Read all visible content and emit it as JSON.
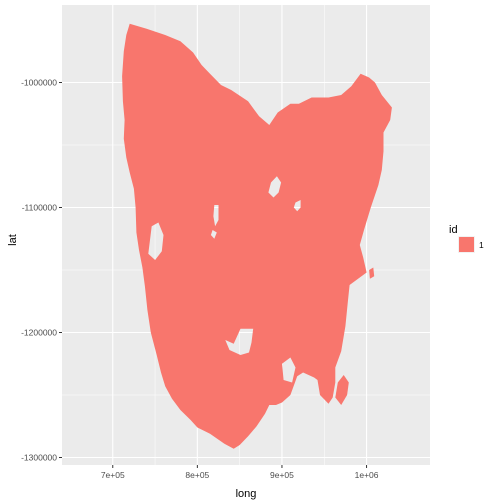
{
  "chart_data": {
    "type": "map",
    "xlabel": "long",
    "ylabel": "lat",
    "xlim": [
      640000,
      1075000
    ],
    "ylim": [
      -1306000,
      -938000
    ],
    "x_ticks": [
      {
        "value": 700000,
        "label": "7e+05"
      },
      {
        "value": 800000,
        "label": "8e+05"
      },
      {
        "value": 900000,
        "label": "9e+05"
      },
      {
        "value": 1000000,
        "label": "1e+06"
      }
    ],
    "y_ticks": [
      {
        "value": -1000000,
        "label": "-1000000"
      },
      {
        "value": -1100000,
        "label": "-1100000"
      },
      {
        "value": -1200000,
        "label": "-1200000"
      },
      {
        "value": -1300000,
        "label": "-1300000"
      }
    ],
    "grid": true,
    "legend": {
      "title": "id",
      "position": "right",
      "entries": [
        {
          "label": "1",
          "color": "#F8766D"
        }
      ]
    },
    "fill_color": "#F8766D",
    "panel_color": "#EBEBEB",
    "grid_color": "#FFFFFF",
    "polygon": [
      [
        720000,
        -953000
      ],
      [
        740000,
        -957000
      ],
      [
        762000,
        -962000
      ],
      [
        780000,
        -967000
      ],
      [
        795000,
        -976000
      ],
      [
        805000,
        -986000
      ],
      [
        815000,
        -993000
      ],
      [
        828000,
        -1002000
      ],
      [
        840000,
        -1006000
      ],
      [
        860000,
        -1015000
      ],
      [
        873000,
        -1027000
      ],
      [
        885000,
        -1034000
      ],
      [
        895000,
        -1024000
      ],
      [
        910000,
        -1017000
      ],
      [
        920000,
        -1017000
      ],
      [
        935000,
        -1012000
      ],
      [
        955000,
        -1012000
      ],
      [
        970000,
        -1010000
      ],
      [
        982000,
        -1003000
      ],
      [
        993000,
        -993000
      ],
      [
        1003000,
        -996000
      ],
      [
        1010000,
        -1000000
      ],
      [
        1018000,
        -1010000
      ],
      [
        1030000,
        -1020000
      ],
      [
        1028000,
        -1030000
      ],
      [
        1020000,
        -1040000
      ],
      [
        1020000,
        -1055000
      ],
      [
        1018000,
        -1070000
      ],
      [
        1014000,
        -1082000
      ],
      [
        1005000,
        -1100000
      ],
      [
        997000,
        -1118000
      ],
      [
        992000,
        -1130000
      ],
      [
        996000,
        -1140000
      ],
      [
        1000000,
        -1152000
      ],
      [
        988000,
        -1158000
      ],
      [
        980000,
        -1162000
      ],
      [
        978000,
        -1175000
      ],
      [
        975000,
        -1195000
      ],
      [
        970000,
        -1215000
      ],
      [
        963000,
        -1228000
      ],
      [
        963000,
        -1240000
      ],
      [
        960000,
        -1252000
      ],
      [
        955000,
        -1257000
      ],
      [
        945000,
        -1250000
      ],
      [
        942000,
        -1238000
      ],
      [
        938000,
        -1236000
      ],
      [
        925000,
        -1232000
      ],
      [
        918000,
        -1235000
      ],
      [
        910000,
        -1250000
      ],
      [
        900000,
        -1256000
      ],
      [
        893000,
        -1258000
      ],
      [
        885000,
        -1258000
      ],
      [
        880000,
        -1265000
      ],
      [
        870000,
        -1275000
      ],
      [
        860000,
        -1283000
      ],
      [
        850000,
        -1290000
      ],
      [
        843000,
        -1293000
      ],
      [
        832000,
        -1289000
      ],
      [
        815000,
        -1281000
      ],
      [
        800000,
        -1276000
      ],
      [
        792000,
        -1270000
      ],
      [
        780000,
        -1262000
      ],
      [
        770000,
        -1253000
      ],
      [
        762000,
        -1243000
      ],
      [
        757000,
        -1232000
      ],
      [
        752000,
        -1218000
      ],
      [
        745000,
        -1200000
      ],
      [
        741000,
        -1182000
      ],
      [
        738000,
        -1163000
      ],
      [
        735000,
        -1148000
      ],
      [
        731000,
        -1134000
      ],
      [
        728000,
        -1120000
      ],
      [
        727000,
        -1100000
      ],
      [
        725000,
        -1085000
      ],
      [
        720000,
        -1072000
      ],
      [
        716000,
        -1060000
      ],
      [
        713000,
        -1045000
      ],
      [
        714000,
        -1030000
      ],
      [
        712000,
        -1015000
      ],
      [
        711000,
        -995000
      ],
      [
        713000,
        -975000
      ],
      [
        716000,
        -962000
      ]
    ],
    "holes": [
      [
        [
          887000,
          -1080000
        ],
        [
          894000,
          -1075000
        ],
        [
          899000,
          -1080000
        ],
        [
          896000,
          -1088000
        ],
        [
          890000,
          -1092000
        ],
        [
          884000,
          -1088000
        ]
      ],
      [
        [
          916000,
          -1096000
        ],
        [
          922000,
          -1094000
        ],
        [
          922000,
          -1100000
        ],
        [
          918000,
          -1103000
        ],
        [
          914000,
          -1100000
        ]
      ],
      [
        [
          851000,
          -1197000
        ],
        [
          866000,
          -1197000
        ],
        [
          864000,
          -1208000
        ],
        [
          861000,
          -1216000
        ],
        [
          851000,
          -1218000
        ],
        [
          838000,
          -1214000
        ],
        [
          833000,
          -1206000
        ],
        [
          843000,
          -1209000
        ]
      ],
      [
        [
          820000,
          -1098000
        ],
        [
          825000,
          -1098000
        ],
        [
          825000,
          -1110000
        ],
        [
          821000,
          -1115000
        ],
        [
          819000,
          -1107000
        ]
      ],
      [
        [
          818000,
          -1118000
        ],
        [
          823000,
          -1120000
        ],
        [
          820000,
          -1125000
        ],
        [
          816000,
          -1122000
        ]
      ],
      [
        [
          746000,
          -1115000
        ],
        [
          754000,
          -1112000
        ],
        [
          760000,
          -1122000
        ],
        [
          758000,
          -1135000
        ],
        [
          750000,
          -1142000
        ],
        [
          742000,
          -1137000
        ]
      ],
      [
        [
          900000,
          -1225000
        ],
        [
          910000,
          -1220000
        ],
        [
          916000,
          -1228000
        ],
        [
          912000,
          -1240000
        ],
        [
          902000,
          -1238000
        ]
      ]
    ],
    "islands": [
      [
        [
          966000,
          -1240000
        ],
        [
          973000,
          -1234000
        ],
        [
          979000,
          -1240000
        ],
        [
          977000,
          -1250000
        ],
        [
          970000,
          -1258000
        ],
        [
          963000,
          -1252000
        ]
      ],
      [
        [
          1003000,
          -1150000
        ],
        [
          1008000,
          -1148000
        ],
        [
          1009000,
          -1155000
        ],
        [
          1004000,
          -1157000
        ]
      ]
    ]
  }
}
